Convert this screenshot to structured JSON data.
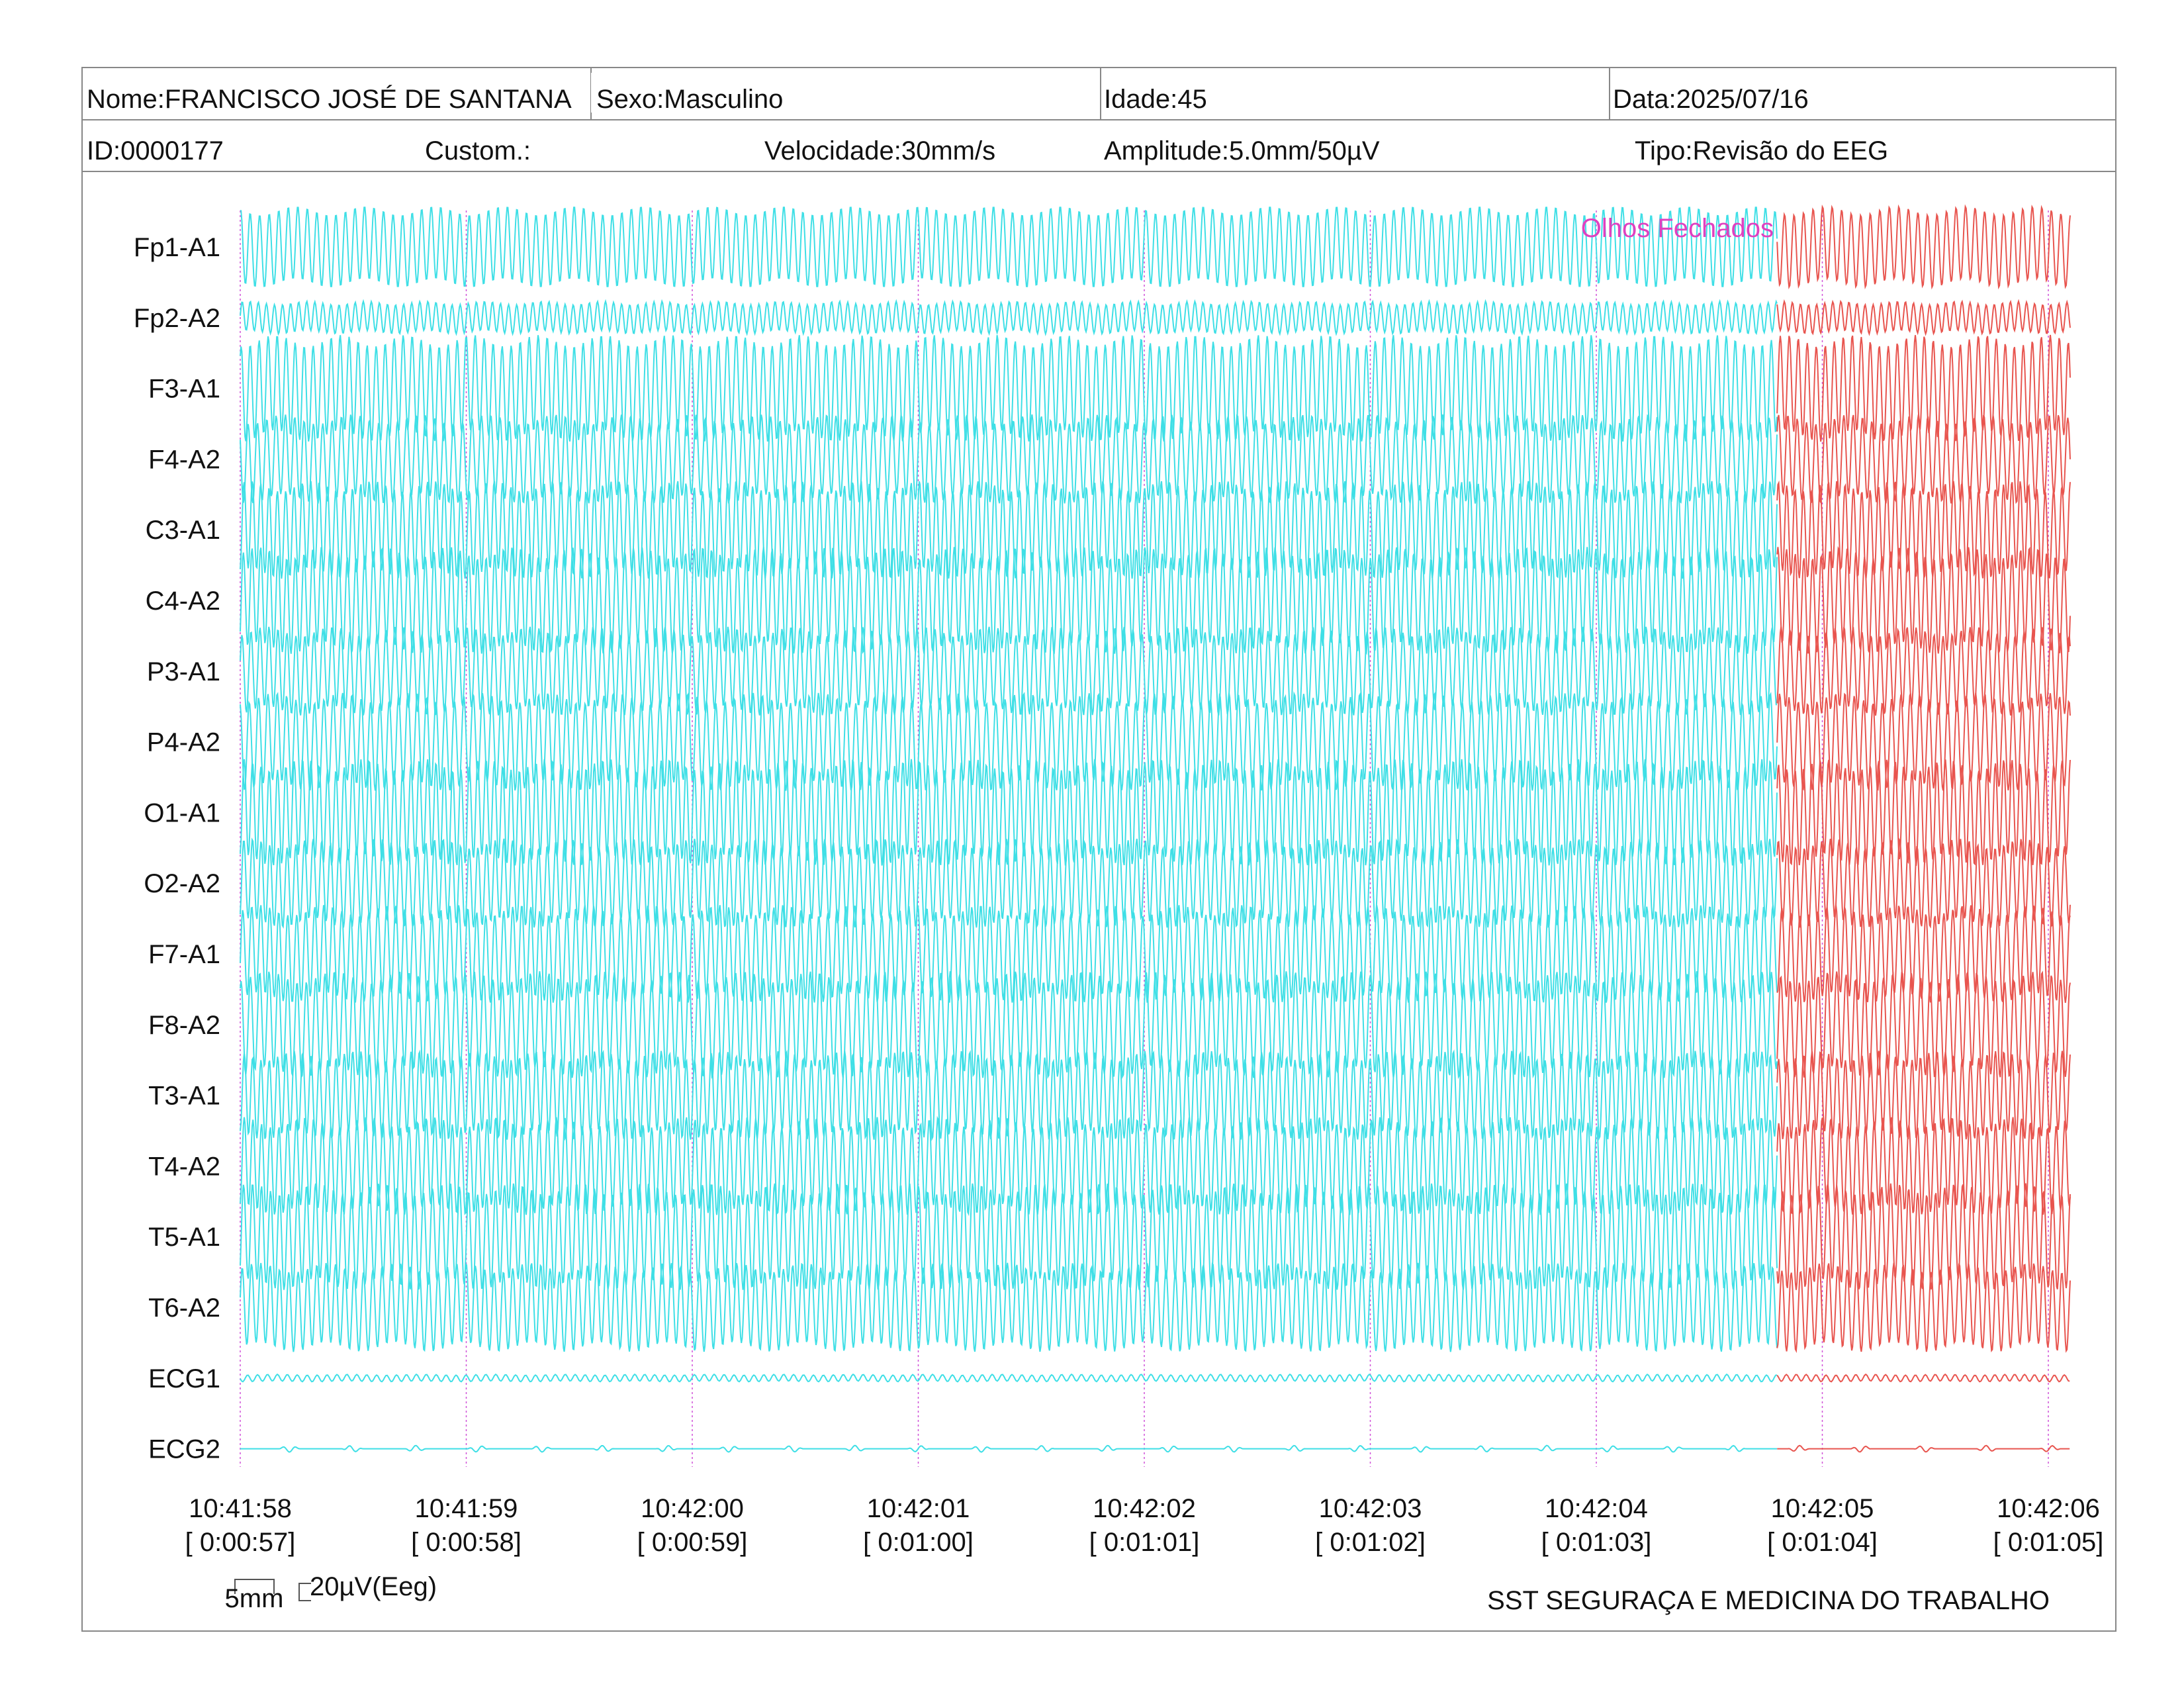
{
  "header": {
    "row1": {
      "name": "Nome:FRANCISCO JOSÉ DE SANTANA",
      "sex": "Sexo:Masculino",
      "age": "Idade:45",
      "date": "Data:2025/07/16"
    },
    "row2": {
      "id": "ID:0000177",
      "custom": "Custom.:",
      "speed": "Velocidade:30mm/s",
      "amplitude": "Amplitude:5.0mm/50µV",
      "type": "Tipo:Revisão do EEG"
    }
  },
  "chart_data": {
    "type": "line",
    "channels": [
      "Fp1-A1",
      "Fp2-A2",
      "F3-A1",
      "F4-A2",
      "C3-A1",
      "C4-A2",
      "P3-A1",
      "P4-A2",
      "O1-A1",
      "O2-A2",
      "F7-A1",
      "F8-A2",
      "T3-A1",
      "T4-A2",
      "T5-A1",
      "T6-A2",
      "ECG1",
      "ECG2"
    ],
    "time_ticks": [
      {
        "clock": "10:41:58",
        "elapsed": "[ 0:00:57]"
      },
      {
        "clock": "10:41:59",
        "elapsed": "[ 0:00:58]"
      },
      {
        "clock": "10:42:00",
        "elapsed": "[ 0:00:59]"
      },
      {
        "clock": "10:42:01",
        "elapsed": "[ 0:01:00]"
      },
      {
        "clock": "10:42:02",
        "elapsed": "[ 0:01:01]"
      },
      {
        "clock": "10:42:03",
        "elapsed": "[ 0:01:02]"
      },
      {
        "clock": "10:42:04",
        "elapsed": "[ 0:01:03]"
      },
      {
        "clock": "10:42:05",
        "elapsed": "[ 0:01:04]"
      },
      {
        "clock": "10:42:06",
        "elapsed": "[ 0:01:05]"
      }
    ],
    "annotation": {
      "text": "Olhos Fechados",
      "at_seconds": 6.8
    },
    "segment_split_seconds": 6.8,
    "duration_seconds": 8.1,
    "colors": {
      "before": "#3fdfe6",
      "after": "#e8554f",
      "annotation": "#e040c0",
      "gridline": "#d050d8"
    }
  },
  "scale": {
    "time_bar_label": "5mm",
    "amplitude_label": "20µV(Eeg)"
  },
  "footer": "SST SEGURAÇA E MEDICINA DO TRABALHO"
}
